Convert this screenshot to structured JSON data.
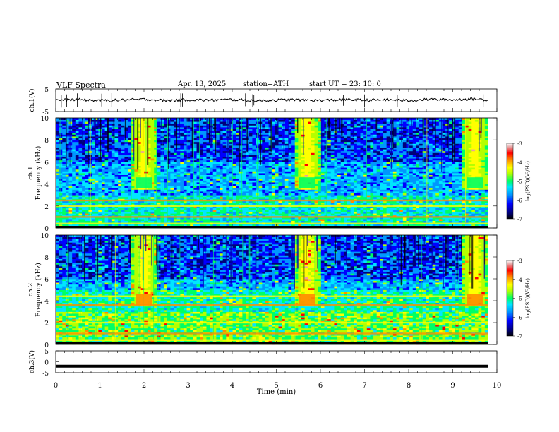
{
  "header": {
    "title": "VLF  Spectra",
    "date": "Apr. 13, 2025",
    "station": "station=ATH",
    "start": "start  UT  =   23: 10: 0"
  },
  "colors": {
    "spectrogram_scale": [
      "#000000",
      "#00007a",
      "#0000ff",
      "#0096ff",
      "#00e6ff",
      "#00ff64",
      "#b4ff00",
      "#ffff00",
      "#ff8c00",
      "#ff0000",
      "#e6a0a0",
      "#ffffff"
    ],
    "trace": "#000000"
  },
  "chart_data": [
    {
      "type": "line",
      "name": "ch1-waveform",
      "ylabel": "ch.1(V)",
      "ylim": [
        -5,
        5
      ],
      "yticks": [
        "5",
        "-5"
      ],
      "xlim": [
        0,
        10
      ],
      "description_series": "noisy baseline near 0 V with occasional spikes",
      "x": [
        0,
        0.5,
        1,
        1.5,
        2,
        2.5,
        3,
        3.5,
        4,
        4.5,
        5,
        5.5,
        6,
        6.5,
        7,
        7.5,
        8,
        8.5,
        9,
        9.5,
        9.8
      ],
      "y": [
        0,
        0.3,
        -0.2,
        0.1,
        0.4,
        -0.1,
        0.2,
        0,
        0.3,
        -0.2,
        0.1,
        0.2,
        -0.1,
        0.3,
        0,
        0.2,
        -0.1,
        0.4,
        0.2,
        0.6,
        0.1
      ]
    },
    {
      "type": "heatmap",
      "name": "ch1-spectrogram",
      "ylabel": "ch.1\nFrequency  (kHz)",
      "ylim": [
        0,
        10
      ],
      "yticks": [
        "0",
        "2",
        "4",
        "6",
        "8",
        "10"
      ],
      "xlim": [
        0,
        10
      ],
      "colorbar": {
        "label": "log(PSD)(V²/Hz)",
        "range": [
          -7,
          -3
        ],
        "ticks": [
          "-3",
          "-4",
          "-5",
          "-6",
          "-7"
        ]
      },
      "bright_bursts_min": [
        1.8,
        5.5,
        9.3
      ],
      "bands_khz": [
        0.4,
        1.0,
        2.0,
        2.5
      ]
    },
    {
      "type": "heatmap",
      "name": "ch2-spectrogram",
      "ylabel": "ch.2\nFrequency  (kHz)",
      "ylim": [
        0,
        10
      ],
      "yticks": [
        "0",
        "2",
        "4",
        "6",
        "8",
        "10"
      ],
      "xlim": [
        0,
        10
      ],
      "colorbar": {
        "label": "log(PSD)(V²/Hz)",
        "range": [
          -7,
          -3
        ],
        "ticks": [
          "-3",
          "-4",
          "-5",
          "-6",
          "-7"
        ]
      },
      "bright_bursts_min": [
        1.8,
        5.5,
        9.3
      ],
      "bands_khz": [
        0.4,
        1.0,
        2.0,
        3.6,
        4.4
      ]
    },
    {
      "type": "line",
      "name": "ch3-waveform",
      "ylabel": "ch.3(V)",
      "ylim": [
        -5,
        5
      ],
      "yticks": [
        "5",
        "0",
        "-5"
      ],
      "xlim": [
        0,
        10
      ],
      "x": [
        0,
        9.8
      ],
      "y": [
        -2,
        -2
      ]
    }
  ],
  "xaxis": {
    "label": "Time  (min)",
    "ticks": [
      "0",
      "1",
      "2",
      "3",
      "4",
      "5",
      "6",
      "7",
      "8",
      "9",
      "10"
    ]
  }
}
